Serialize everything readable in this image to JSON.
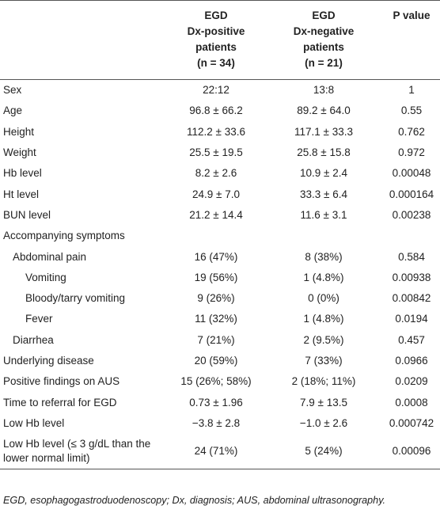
{
  "table": {
    "header": [
      [
        "EGD",
        "Dx-positive",
        "patients",
        "(n = 34)"
      ],
      [
        "EGD",
        "Dx-negative",
        "patients",
        "(n = 21)"
      ],
      [
        "P value"
      ]
    ],
    "rows": [
      [
        "Sex",
        "22:12",
        "13:8",
        "1"
      ],
      [
        "Age",
        "96.8 ± 66.2",
        "89.2 ± 64.0",
        "0.55"
      ],
      [
        "Height",
        "112.2 ± 33.6",
        "117.1 ± 33.3",
        "0.762"
      ],
      [
        "Weight",
        "25.5 ± 19.5",
        "25.8 ± 15.8",
        "0.972"
      ],
      [
        "Hb level",
        "8.2 ± 2.6",
        "10.9 ± 2.4",
        "0.00048"
      ],
      [
        "Ht level",
        "24.9 ± 7.0",
        "33.3 ± 6.4",
        "0.000164"
      ],
      [
        "BUN level",
        "21.2 ± 14.4",
        "11.6 ± 3.1",
        "0.00238"
      ],
      [
        "Accompanying symptoms"
      ],
      [
        "Abdominal pain",
        "16 (47%)",
        "8 (38%)",
        "0.584"
      ],
      [
        "Vomiting",
        "19 (56%)",
        "1 (4.8%)",
        "0.00938"
      ],
      [
        "Bloody/tarry vomiting",
        "9 (26%)",
        "0 (0%)",
        "0.00842"
      ],
      [
        "Fever",
        "11 (32%)",
        "1 (4.8%)",
        "0.0194"
      ],
      [
        "Diarrhea",
        "7 (21%)",
        "2 (9.5%)",
        "0.457"
      ],
      [
        "Underlying disease",
        "20 (59%)",
        "7 (33%)",
        "0.0966"
      ],
      [
        "Positive findings on AUS",
        "15 (26%; 58%)",
        "2 (18%; 11%)",
        "0.0209"
      ],
      [
        "Time to referral for EGD",
        "0.73 ± 1.96",
        "7.9 ± 13.5",
        "0.0008"
      ],
      [
        "Low Hb level",
        "−3.8 ± 2.8",
        "−1.0 ± 2.6",
        "0.000742"
      ],
      [
        "Low Hb level (≤ 3 g/dL than the lower normal limit)",
        "24 (71%)",
        "5 (24%)",
        "0.00096"
      ]
    ],
    "footnote": "EGD, esophagogastroduodenoscopy; Dx, diagnosis; AUS, abdominal ultrasonography."
  }
}
